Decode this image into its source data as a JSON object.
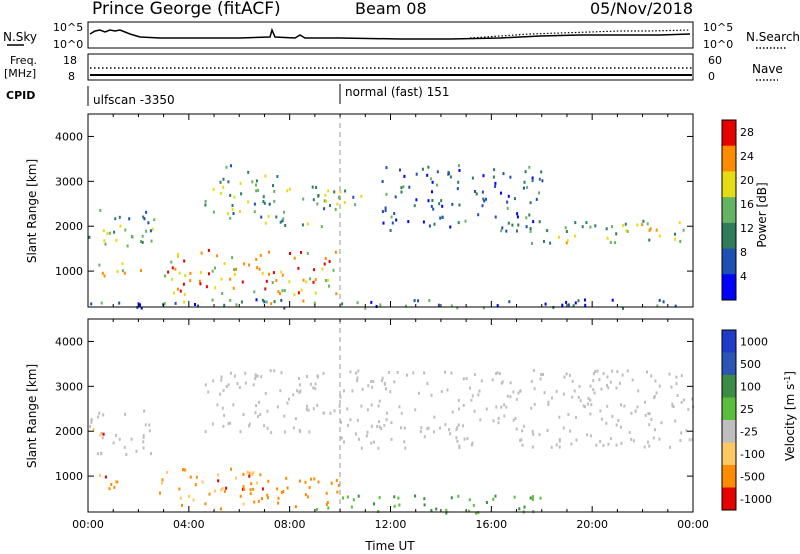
{
  "header": {
    "station": "Prince George (fitACF)",
    "beam": "Beam 08",
    "date": "05/Nov/2018"
  },
  "top_panels": {
    "nsky_label": "N.Sky",
    "nsearch_label": "N.Search",
    "nsky_ticks": [
      "10^5",
      "10^0"
    ],
    "freq_label": "Freq.",
    "freq_unit": "[MHz]",
    "freq_ticks": [
      "18",
      "8"
    ],
    "nave_label": "Nave",
    "nave_ticks": [
      "60",
      "0"
    ],
    "cpid_label": "CPID",
    "cpid_modes": [
      {
        "start_hour": 0,
        "name": "ulfscan -3350"
      },
      {
        "start_hour": 10,
        "name": "normal (fast) 151"
      }
    ]
  },
  "chart_data": [
    {
      "type": "heatmap",
      "panel": "power",
      "xlabel": "",
      "ylabel": "Slant Range [km]",
      "x_range_hours": [
        0,
        24
      ],
      "y_range_km": [
        200,
        4500
      ],
      "yticks": [
        "1000",
        "2000",
        "3000",
        "4000"
      ],
      "colorbar": {
        "label": "Power [dB]",
        "ticks": [
          "4",
          "8",
          "12",
          "16",
          "20",
          "24",
          "28"
        ],
        "range": [
          0,
          30
        ],
        "colors": [
          "#0000ff",
          "#1e50b4",
          "#2d7d5a",
          "#64b464",
          "#e6dc14",
          "#ff8c00",
          "#e60000"
        ]
      },
      "cutoff_line_hour": 10,
      "regions": [
        {
          "t0": 0.0,
          "t1": 2.6,
          "r0": 1500,
          "r1": 2500,
          "level": 14
        },
        {
          "t0": 0.3,
          "t1": 1.6,
          "r0": 700,
          "r1": 1200,
          "level": 20
        },
        {
          "t0": 2.0,
          "t1": 2.2,
          "r0": 700,
          "r1": 1100,
          "level": 26
        },
        {
          "t0": 4.6,
          "t1": 7.5,
          "r0": 2200,
          "r1": 3400,
          "level": 12
        },
        {
          "t0": 7.0,
          "t1": 10.0,
          "r0": 2000,
          "r1": 3000,
          "level": 14
        },
        {
          "t0": 10.0,
          "t1": 11.2,
          "r0": 2500,
          "r1": 2900,
          "level": 14
        },
        {
          "t0": 11.6,
          "t1": 18.0,
          "r0": 1900,
          "r1": 3400,
          "level": 8
        },
        {
          "t0": 17.5,
          "t1": 24.0,
          "r0": 1650,
          "r1": 2200,
          "level": 16
        },
        {
          "t0": 3.0,
          "t1": 10.0,
          "r0": 300,
          "r1": 1500,
          "level": 22
        },
        {
          "t0": 0.0,
          "t1": 24.0,
          "r0": 200,
          "r1": 400,
          "level": 8
        }
      ]
    },
    {
      "type": "heatmap",
      "panel": "velocity",
      "xlabel": "Time UT",
      "ylabel": "Slant Range [km]",
      "x_range_hours": [
        0,
        24
      ],
      "y_range_km": [
        200,
        4500
      ],
      "xticks": [
        "00:00",
        "04:00",
        "08:00",
        "12:00",
        "16:00",
        "20:00",
        "00:00"
      ],
      "yticks": [
        "1000",
        "2000",
        "3000",
        "4000"
      ],
      "colorbar": {
        "label": "Velocity [m s^-1]",
        "ticks": [
          "1000",
          "500",
          "100",
          "25",
          "-25",
          "-100",
          "-500",
          "-1000"
        ],
        "colors": [
          "#1e3cc8",
          "#2d55b4",
          "#3c8c46",
          "#5abe3c",
          "#bebebe",
          "#ffc864",
          "#ff8c00",
          "#e60000"
        ]
      },
      "cutoff_line_hour": 10,
      "regions": [
        {
          "t0": 0.0,
          "t1": 2.6,
          "r0": 1500,
          "r1": 2500,
          "class": "gs"
        },
        {
          "t0": 0.0,
          "t1": 0.6,
          "r0": 1600,
          "r1": 2100,
          "class": "-500"
        },
        {
          "t0": 0.3,
          "t1": 1.6,
          "r0": 700,
          "r1": 1200,
          "class": "-500"
        },
        {
          "t0": 4.6,
          "t1": 10.0,
          "r0": 2000,
          "r1": 3400,
          "class": "gs"
        },
        {
          "t0": 10.0,
          "t1": 24.0,
          "r0": 1650,
          "r1": 3400,
          "class": "gs"
        },
        {
          "t0": 2.5,
          "t1": 7.0,
          "r0": 300,
          "r1": 1200,
          "class": "-500"
        },
        {
          "t0": 6.0,
          "t1": 10.0,
          "r0": 300,
          "r1": 1000,
          "class": "-100"
        },
        {
          "t0": 9.0,
          "t1": 18.0,
          "r0": 200,
          "r1": 600,
          "class": "100"
        }
      ]
    }
  ],
  "colors": {
    "frame": "#000000",
    "dashed_line": "#999999",
    "ground_scatter": "#bebebe"
  }
}
